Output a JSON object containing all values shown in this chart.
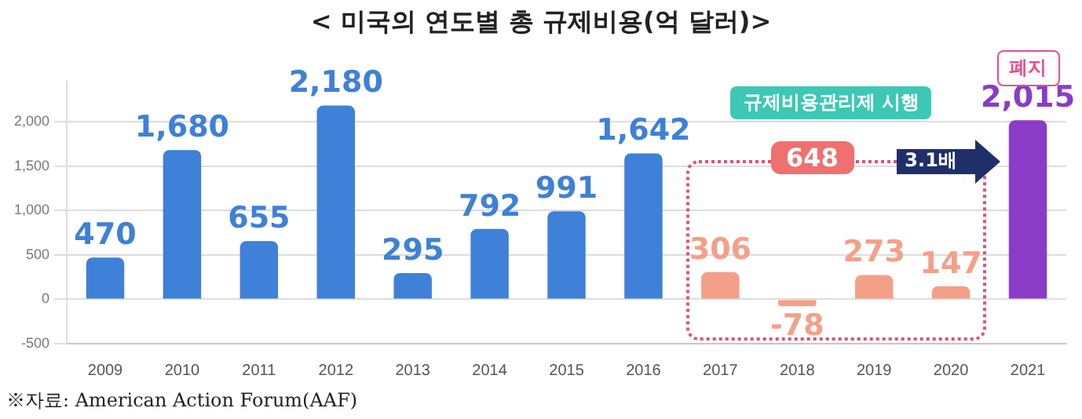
{
  "chart_data": {
    "type": "bar",
    "title": "< 미국의 연도별 총 규제비용(억 달러)>",
    "categories": [
      "2009",
      "2010",
      "2011",
      "2012",
      "2013",
      "2014",
      "2015",
      "2016",
      "2017",
      "2018",
      "2019",
      "2020",
      "2021"
    ],
    "values": [
      470,
      1680,
      655,
      2180,
      295,
      792,
      991,
      1642,
      306,
      -78,
      273,
      147,
      2015
    ],
    "colors": [
      "#3f80d8",
      "#3f80d8",
      "#3f80d8",
      "#3f80d8",
      "#3f80d8",
      "#3f80d8",
      "#3f80d8",
      "#3f80d8",
      "#f4a088",
      "#f4a088",
      "#f4a088",
      "#f4a088",
      "#8a3cc8"
    ],
    "value_labels": [
      "470",
      "1,680",
      "655",
      "2,180",
      "295",
      "792",
      "991",
      "1,642",
      "306",
      "-78",
      "273",
      "147",
      "2,015"
    ],
    "ylim": [
      -500,
      2450
    ],
    "yticks": [
      -500,
      0,
      500,
      {
        "value": 1000,
        "label": "1,000"
      },
      {
        "value": 1500,
        "label": "1,500"
      },
      {
        "value": 2000,
        "label": "2,000"
      }
    ],
    "grid": "y",
    "annotations": [
      "규제비용관리제 시행",
      "648",
      "3.1배",
      {
        "text": "폐지",
        "x": "2021",
        "y": 2015
      },
      "※자료: American Action Forum(AAF)"
    ]
  }
}
